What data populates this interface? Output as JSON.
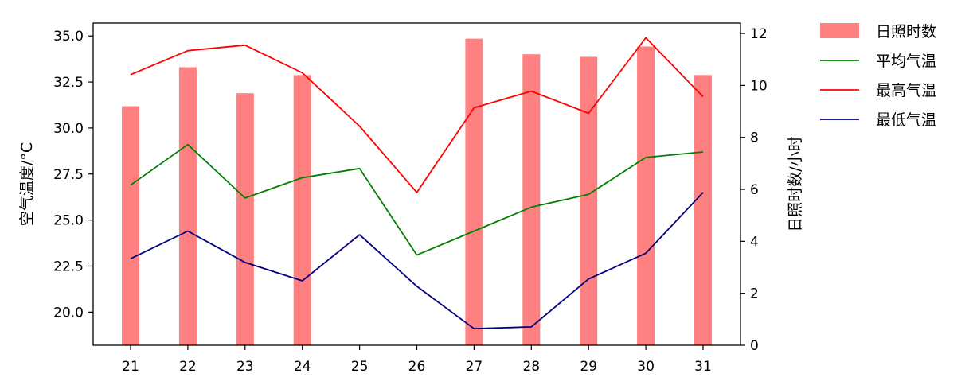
{
  "chart_data": {
    "type": "bar+line",
    "categories": [
      "21",
      "22",
      "23",
      "24",
      "25",
      "26",
      "27",
      "28",
      "29",
      "30",
      "31"
    ],
    "ylabel": "空气温度/°C",
    "y2label": "日照时数/小时",
    "ylim": [
      18.2,
      35.7
    ],
    "y2lim": [
      0,
      12.4
    ],
    "yticks": [
      "20.0",
      "22.5",
      "25.0",
      "27.5",
      "30.0",
      "32.5",
      "35.0"
    ],
    "y2ticks": [
      "0",
      "2",
      "4",
      "6",
      "8",
      "10",
      "12"
    ],
    "bars": {
      "name": "日照时数",
      "axis": "right",
      "color": "#ff8080",
      "values": [
        9.2,
        10.7,
        9.7,
        10.4,
        null,
        null,
        11.8,
        11.2,
        11.1,
        11.5,
        10.4
      ]
    },
    "series": [
      {
        "name": "平均气温",
        "color": "#008000",
        "values": [
          26.9,
          29.1,
          26.2,
          27.3,
          27.8,
          23.1,
          24.4,
          25.7,
          26.4,
          28.4,
          28.7
        ]
      },
      {
        "name": "最高气温",
        "color": "#ff0000",
        "values": [
          32.9,
          34.2,
          34.5,
          33.0,
          30.1,
          26.5,
          31.1,
          32.0,
          30.8,
          34.9,
          31.7
        ]
      },
      {
        "name": "最低气温",
        "color": "#000080",
        "values": [
          22.9,
          24.4,
          22.7,
          21.7,
          24.2,
          21.4,
          19.1,
          19.2,
          21.8,
          23.2,
          26.5
        ]
      }
    ],
    "legend_position": "outside-top-right",
    "grid": false
  }
}
